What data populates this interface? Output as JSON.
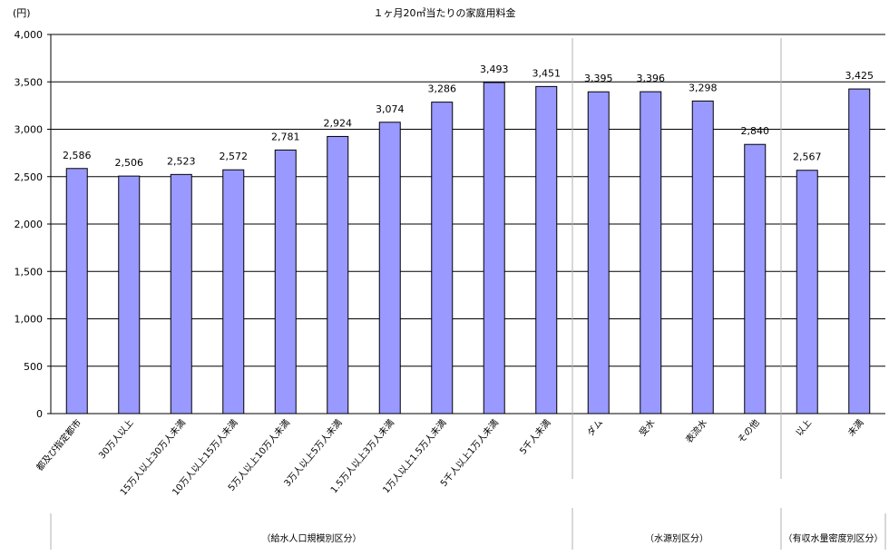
{
  "chart_data": {
    "type": "bar",
    "title": "１ヶ月20㎥当たりの家庭用料金",
    "ylabel": "(円)",
    "xlabel": "",
    "ylim": [
      0,
      4000
    ],
    "yticks": [
      "0",
      "500",
      "1,000",
      "1,500",
      "2,000",
      "2,500",
      "3,000",
      "3,500",
      "4,000"
    ],
    "grid": true,
    "bar_color": "#9999ff",
    "categories": [
      "都及び指定都市",
      "30万人以上",
      "15万人以上30万人未満",
      "10万人以上15万人未満",
      "5万人以上10万人未満",
      "3万人以上5万人未満",
      "1.5万人以上3万人未満",
      "1万人以上1.5万人未満",
      "5千人以上1万人未満",
      "5千人未満",
      "ダム",
      "受水",
      "表流水",
      "その他",
      "以上",
      "未満"
    ],
    "values": [
      2586,
      2506,
      2523,
      2572,
      2781,
      2924,
      3074,
      3286,
      3493,
      3451,
      3395,
      3396,
      3298,
      2840,
      2567,
      3425
    ],
    "value_labels": [
      "2,586",
      "2,506",
      "2,523",
      "2,572",
      "2,781",
      "2,924",
      "3,074",
      "3,286",
      "3,493",
      "3,451",
      "3,395",
      "3,396",
      "3,298",
      "2,840",
      "2,567",
      "3,425"
    ],
    "groups": [
      {
        "label": "（給水人口規模別区分）",
        "start": 0,
        "end": 9
      },
      {
        "label": "（水源別区分）",
        "start": 10,
        "end": 13
      },
      {
        "label": "（有収水量密度別区分）",
        "start": 14,
        "end": 15
      }
    ]
  }
}
